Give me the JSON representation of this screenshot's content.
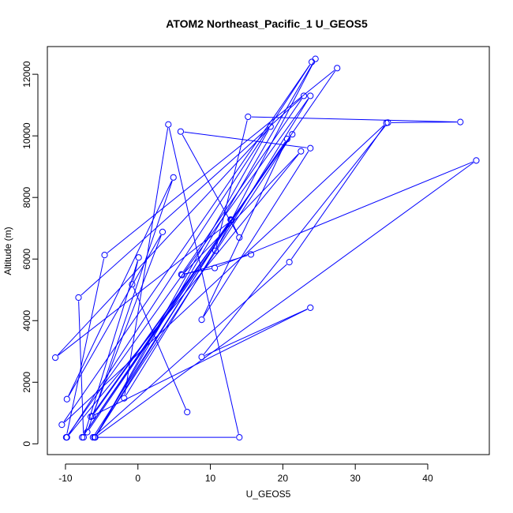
{
  "chart_data": {
    "type": "line",
    "title": "ATOM2 Northeast_Pacific_1 U_GEOS5",
    "xlabel": "U_GEOS5",
    "ylabel": "Altitude (m)",
    "xlim": [
      -12.5,
      48.5
    ],
    "ylim": [
      -350,
      12900
    ],
    "x_ticks": [
      -10,
      0,
      10,
      20,
      30,
      40
    ],
    "y_ticks": [
      0,
      2000,
      4000,
      6000,
      8000,
      10000,
      12000
    ],
    "x_tick_labels": [
      "-10",
      "0",
      "10",
      "20",
      "30",
      "40"
    ],
    "y_tick_labels": [
      "0",
      "2000",
      "4000",
      "6000",
      "8000",
      "10000",
      "12000"
    ],
    "grid": false,
    "legend": "none",
    "series_color": "#0000ff",
    "marker": "open-circle",
    "series": [
      {
        "points": [
          {
            "x": 6.8,
            "y": 1030
          },
          {
            "x": -0.8,
            "y": 5180
          },
          {
            "x": 0.1,
            "y": 6050
          },
          {
            "x": -7.5,
            "y": 210
          },
          {
            "x": -8.2,
            "y": 4750
          },
          {
            "x": 22.9,
            "y": 11300
          },
          {
            "x": 6.0,
            "y": 5500
          },
          {
            "x": 10.6,
            "y": 5710
          },
          {
            "x": 46.7,
            "y": 9200
          },
          {
            "x": -5.9,
            "y": 210
          },
          {
            "x": 24.5,
            "y": 12500
          },
          {
            "x": 10.7,
            "y": 6270
          },
          {
            "x": 15.2,
            "y": 10620
          },
          {
            "x": 44.5,
            "y": 10450
          },
          {
            "x": 34.5,
            "y": 10430
          },
          {
            "x": 8.8,
            "y": 2820
          },
          {
            "x": 23.8,
            "y": 4420
          },
          {
            "x": -6.5,
            "y": 880
          },
          {
            "x": 21.3,
            "y": 10050
          },
          {
            "x": -6.0,
            "y": 210
          },
          {
            "x": 14.0,
            "y": 210
          },
          {
            "x": 4.2,
            "y": 10370
          },
          {
            "x": -1.9,
            "y": 1480
          },
          {
            "x": 23.8,
            "y": 11300
          },
          {
            "x": -9.9,
            "y": 210
          },
          {
            "x": -4.6,
            "y": 6130
          },
          {
            "x": 27.5,
            "y": 12200
          },
          {
            "x": -7.7,
            "y": 210
          },
          {
            "x": 12.8,
            "y": 7280
          },
          {
            "x": -5.9,
            "y": 210
          },
          {
            "x": 18.3,
            "y": 10300
          },
          {
            "x": -11.4,
            "y": 2800
          },
          {
            "x": 12.9,
            "y": 7250
          },
          {
            "x": 14.0,
            "y": 6700
          },
          {
            "x": 5.9,
            "y": 10140
          },
          {
            "x": 23.8,
            "y": 9600
          },
          {
            "x": 8.8,
            "y": 4030
          },
          {
            "x": 20.6,
            "y": 9900
          },
          {
            "x": -7.0,
            "y": 380
          },
          {
            "x": 4.9,
            "y": 8650
          },
          {
            "x": -9.8,
            "y": 1450
          },
          {
            "x": 3.4,
            "y": 6880
          },
          {
            "x": -6.3,
            "y": 900
          },
          {
            "x": 12.9,
            "y": 7270
          },
          {
            "x": -6.2,
            "y": 210
          },
          {
            "x": 20.9,
            "y": 5900
          },
          {
            "x": 34.3,
            "y": 10420
          },
          {
            "x": -10.5,
            "y": 620
          },
          {
            "x": 24.0,
            "y": 12400
          },
          {
            "x": -9.8,
            "y": 210
          },
          {
            "x": 22.5,
            "y": 9500
          },
          {
            "x": 6.1,
            "y": 5480
          },
          {
            "x": 15.6,
            "y": 6150
          }
        ]
      }
    ]
  }
}
